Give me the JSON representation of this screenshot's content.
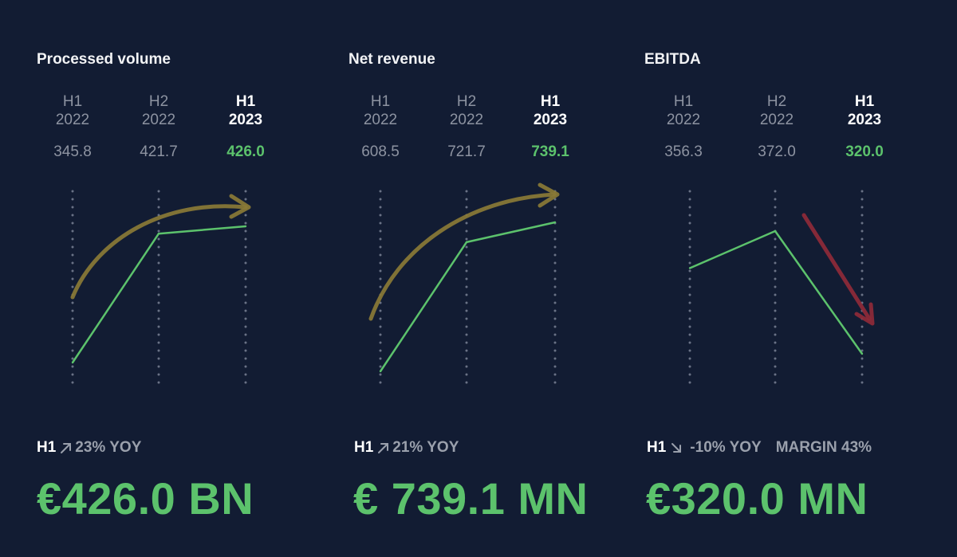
{
  "panels": [
    {
      "title": "Processed volume",
      "periods": [
        {
          "h": "H1",
          "year": "2022",
          "value": "345.8"
        },
        {
          "h": "H2",
          "year": "2022",
          "value": "421.7"
        },
        {
          "h": "H1",
          "year": "2023",
          "value": "426.0"
        }
      ],
      "yoy_h": "H1",
      "yoy_text": "23% YOY",
      "trend": "up",
      "headline": "€426.0 BN"
    },
    {
      "title": "Net revenue",
      "periods": [
        {
          "h": "H1",
          "year": "2022",
          "value": "608.5"
        },
        {
          "h": "H2",
          "year": "2022",
          "value": "721.7"
        },
        {
          "h": "H1",
          "year": "2023",
          "value": "739.1"
        }
      ],
      "yoy_h": "H1",
      "yoy_text": "21% YOY",
      "trend": "up",
      "headline": "€ 739.1 MN"
    },
    {
      "title": "EBITDA",
      "periods": [
        {
          "h": "H1",
          "year": "2022",
          "value": "356.3"
        },
        {
          "h": "H2",
          "year": "2022",
          "value": "372.0"
        },
        {
          "h": "H1",
          "year": "2023",
          "value": "320.0"
        }
      ],
      "yoy_h": "H1",
      "yoy_text": "-10% YOY",
      "margin_text": "MARGIN 43%",
      "trend": "down",
      "headline": "€320.0 MN"
    }
  ],
  "chart_data": [
    {
      "type": "line",
      "title": "Processed volume",
      "x": [
        "H1 2022",
        "H2 2022",
        "H1 2023"
      ],
      "values": [
        345.8,
        421.7,
        426.0
      ]
    },
    {
      "type": "line",
      "title": "Net revenue",
      "x": [
        "H1 2022",
        "H2 2022",
        "H1 2023"
      ],
      "values": [
        608.5,
        721.7,
        739.1
      ]
    },
    {
      "type": "line",
      "title": "EBITDA",
      "x": [
        "H1 2022",
        "H2 2022",
        "H1 2023"
      ],
      "values": [
        356.3,
        372.0,
        320.0
      ]
    }
  ],
  "colors": {
    "background": "#121c33",
    "line": "#5cc26c",
    "trend_up_arrow": "#8a7a36",
    "trend_down_arrow": "#8f2a38",
    "muted_text": "#8d93a1",
    "highlight_value": "#5cc26c"
  }
}
